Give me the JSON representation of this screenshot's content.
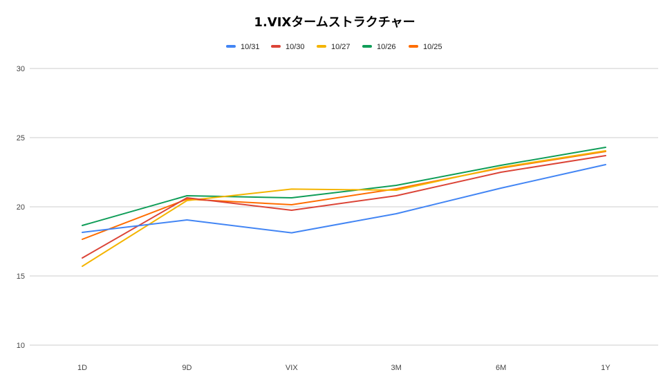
{
  "chart_data": {
    "type": "line",
    "title": "1.VIXタームストラクチャー",
    "categories": [
      "1D",
      "9D",
      "VIX",
      "3M",
      "6M",
      "1Y"
    ],
    "ylim": [
      10,
      30
    ],
    "yticks": [
      "10",
      "15",
      "20",
      "25",
      "30"
    ],
    "grid": true,
    "legend_position": "top",
    "series": [
      {
        "name": "10/31",
        "color": "#4285f4",
        "values": [
          18.15,
          19.05,
          18.12,
          19.5,
          21.35,
          23.05
        ]
      },
      {
        "name": "10/30",
        "color": "#db4437",
        "values": [
          16.3,
          20.65,
          19.75,
          20.8,
          22.5,
          23.7
        ]
      },
      {
        "name": "10/27",
        "color": "#f4b400",
        "values": [
          15.7,
          20.45,
          21.28,
          21.2,
          22.85,
          24.05
        ]
      },
      {
        "name": "10/26",
        "color": "#0f9d58",
        "values": [
          18.65,
          20.8,
          20.65,
          21.55,
          23.0,
          24.3
        ]
      },
      {
        "name": "10/25",
        "color": "#ff6d00",
        "values": [
          17.65,
          20.55,
          20.15,
          21.3,
          22.8,
          24.0
        ]
      }
    ]
  }
}
